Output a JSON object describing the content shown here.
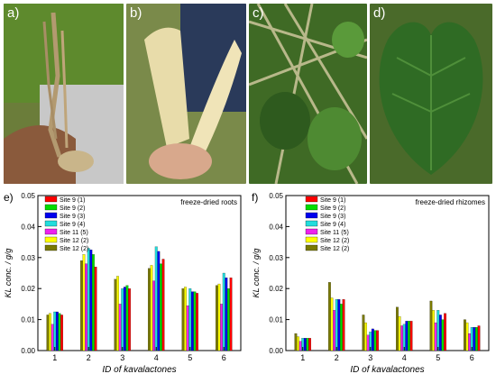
{
  "panels": [
    {
      "label": "a)",
      "subject": "kava root held in hand"
    },
    {
      "label": "b)",
      "subject": "peeled kava root pieces"
    },
    {
      "label": "c)",
      "subject": "kava stems and leaves"
    },
    {
      "label": "d)",
      "subject": "heart-shaped kava leaf"
    }
  ],
  "colors": {
    "Site 9 (1)": "#ff0000",
    "Site 9 (2)": "#00dd00",
    "Site 9 (3)": "#0000ee",
    "Site 9 (4)": "#22dddd",
    "Site 11 (5)": "#ee22ee",
    "Site 12 (2)": "#ffff00",
    "Site 12 (2) ": "#7a7a00"
  },
  "chart_data": [
    {
      "type": "bar",
      "panel_label": "e)",
      "title": "freeze-dried roots",
      "xlabel": "ID of kavalactones",
      "ylabel": "KL conc. / g/g",
      "ylim": [
        0,
        0.05
      ],
      "yticks": [
        "0.00",
        "0.01",
        "0.02",
        "0.03",
        "0.04",
        "0.05"
      ],
      "categories": [
        "1",
        "2",
        "3",
        "4",
        "5",
        "6"
      ],
      "legend_position": "top-left",
      "grid": false,
      "series": [
        {
          "name": "Site 12 (2)",
          "color": "#7a7a00",
          "values": [
            0.0115,
            0.029,
            0.023,
            0.0265,
            0.02,
            0.021
          ]
        },
        {
          "name": "Site 12 (2)",
          "color": "#ffff00",
          "values": [
            0.012,
            0.031,
            0.024,
            0.0275,
            0.0205,
            0.0215
          ]
        },
        {
          "name": "Site 11 (5)",
          "color": "#ee22ee",
          "values": [
            0.0085,
            0.028,
            0.015,
            0.0225,
            0.0145,
            0.015
          ]
        },
        {
          "name": "Site 9 (4)",
          "color": "#22dddd",
          "values": [
            0.0125,
            0.033,
            0.02,
            0.0335,
            0.02,
            0.025
          ]
        },
        {
          "name": "Site 9 (3)",
          "color": "#0000ee",
          "values": [
            0.0125,
            0.0325,
            0.0205,
            0.032,
            0.019,
            0.0235
          ]
        },
        {
          "name": "Site 9 (2)",
          "color": "#00dd00",
          "values": [
            0.012,
            0.031,
            0.021,
            0.028,
            0.019,
            0.02
          ]
        },
        {
          "name": "Site 9 (1)",
          "color": "#ff0000",
          "values": [
            0.0115,
            0.027,
            0.02,
            0.0295,
            0.0185,
            0.0235
          ]
        }
      ]
    },
    {
      "type": "bar",
      "panel_label": "f)",
      "title": "freeze-dried rhizomes",
      "xlabel": "ID of kavalactones",
      "ylabel": "KL conc. / g/g",
      "ylim": [
        0,
        0.05
      ],
      "yticks": [
        "0.00",
        "0.01",
        "0.02",
        "0.03",
        "0.04",
        "0.05"
      ],
      "categories": [
        "1",
        "2",
        "3",
        "4",
        "5",
        "6"
      ],
      "legend_position": "top-right",
      "grid": false,
      "series": [
        {
          "name": "Site 12 (2)",
          "color": "#7a7a00",
          "values": [
            0.0055,
            0.022,
            0.0115,
            0.014,
            0.016,
            0.01
          ]
        },
        {
          "name": "Site 12 (2)",
          "color": "#ffff00",
          "values": [
            0.0045,
            0.017,
            0.009,
            0.011,
            0.013,
            0.009
          ]
        },
        {
          "name": "Site 11 (5)",
          "color": "#ee22ee",
          "values": [
            0.003,
            0.013,
            0.005,
            0.008,
            0.009,
            0.0055
          ]
        },
        {
          "name": "Site 9 (4)",
          "color": "#22dddd",
          "values": [
            0.004,
            0.0165,
            0.006,
            0.0085,
            0.013,
            0.0075
          ]
        },
        {
          "name": "Site 9 (3)",
          "color": "#0000ee",
          "values": [
            0.004,
            0.0165,
            0.007,
            0.0095,
            0.0115,
            0.0075
          ]
        },
        {
          "name": "Site 9 (2)",
          "color": "#00dd00",
          "values": [
            0.004,
            0.015,
            0.0065,
            0.0095,
            0.01,
            0.0075
          ]
        },
        {
          "name": "Site 9 (1)",
          "color": "#ff0000",
          "values": [
            0.004,
            0.0165,
            0.0065,
            0.0095,
            0.012,
            0.008
          ]
        }
      ],
      "legend_order": [
        "Site 9 (1)",
        "Site 9 (2)",
        "Site 9 (3)",
        "Site 9 (4)",
        "Site 11 (5)",
        "Site 12 (2)",
        "Site 12 (2)"
      ]
    }
  ]
}
